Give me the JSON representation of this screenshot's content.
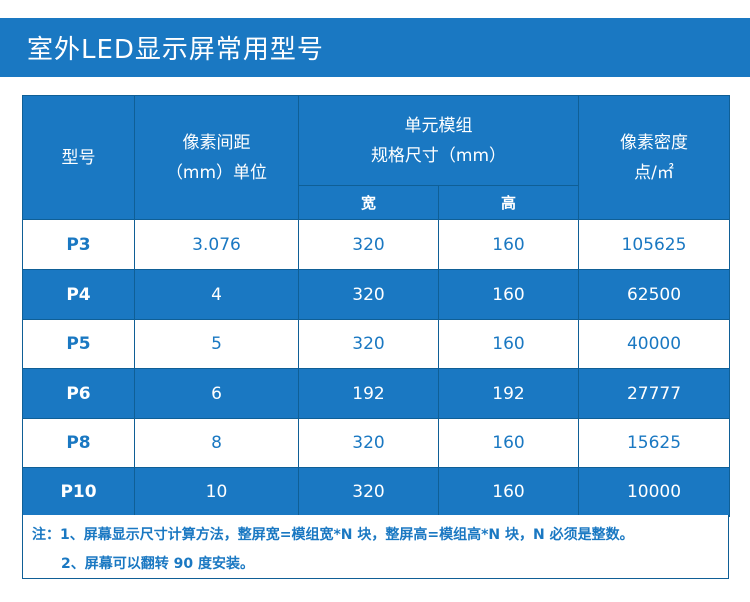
{
  "banner": {
    "title": "室外LED显示屏常用型号"
  },
  "table": {
    "headers": {
      "model": "型号",
      "pitch_line1": "像素间距",
      "pitch_line2": "（mm）单位",
      "module_line1": "单元模组",
      "module_line2": "规格尺寸（mm）",
      "density_line1": "像素密度",
      "density_line2": "点/㎡",
      "width": "宽",
      "height": "高"
    },
    "rows": [
      {
        "model": "P3",
        "pitch": "3.076",
        "width": "320",
        "height": "160",
        "density": "105625"
      },
      {
        "model": "P4",
        "pitch": "4",
        "width": "320",
        "height": "160",
        "density": "62500"
      },
      {
        "model": "P5",
        "pitch": "5",
        "width": "320",
        "height": "160",
        "density": "40000"
      },
      {
        "model": "P6",
        "pitch": "6",
        "width": "192",
        "height": "192",
        "density": "27777"
      },
      {
        "model": "P8",
        "pitch": "8",
        "width": "320",
        "height": "160",
        "density": "15625"
      },
      {
        "model": "P10",
        "pitch": "10",
        "width": "320",
        "height": "160",
        "density": "10000"
      }
    ]
  },
  "notes": {
    "line1": "注：1、屏幕显示尺寸计算方法，整屏宽=模组宽*N 块，整屏高=模组高*N 块，N 必须是整数。",
    "line2": "2、屏幕可以翻转 90 度安装。"
  },
  "colors": {
    "primary": "#1a78c2",
    "border": "#0f5f96",
    "background": "#ffffff"
  }
}
